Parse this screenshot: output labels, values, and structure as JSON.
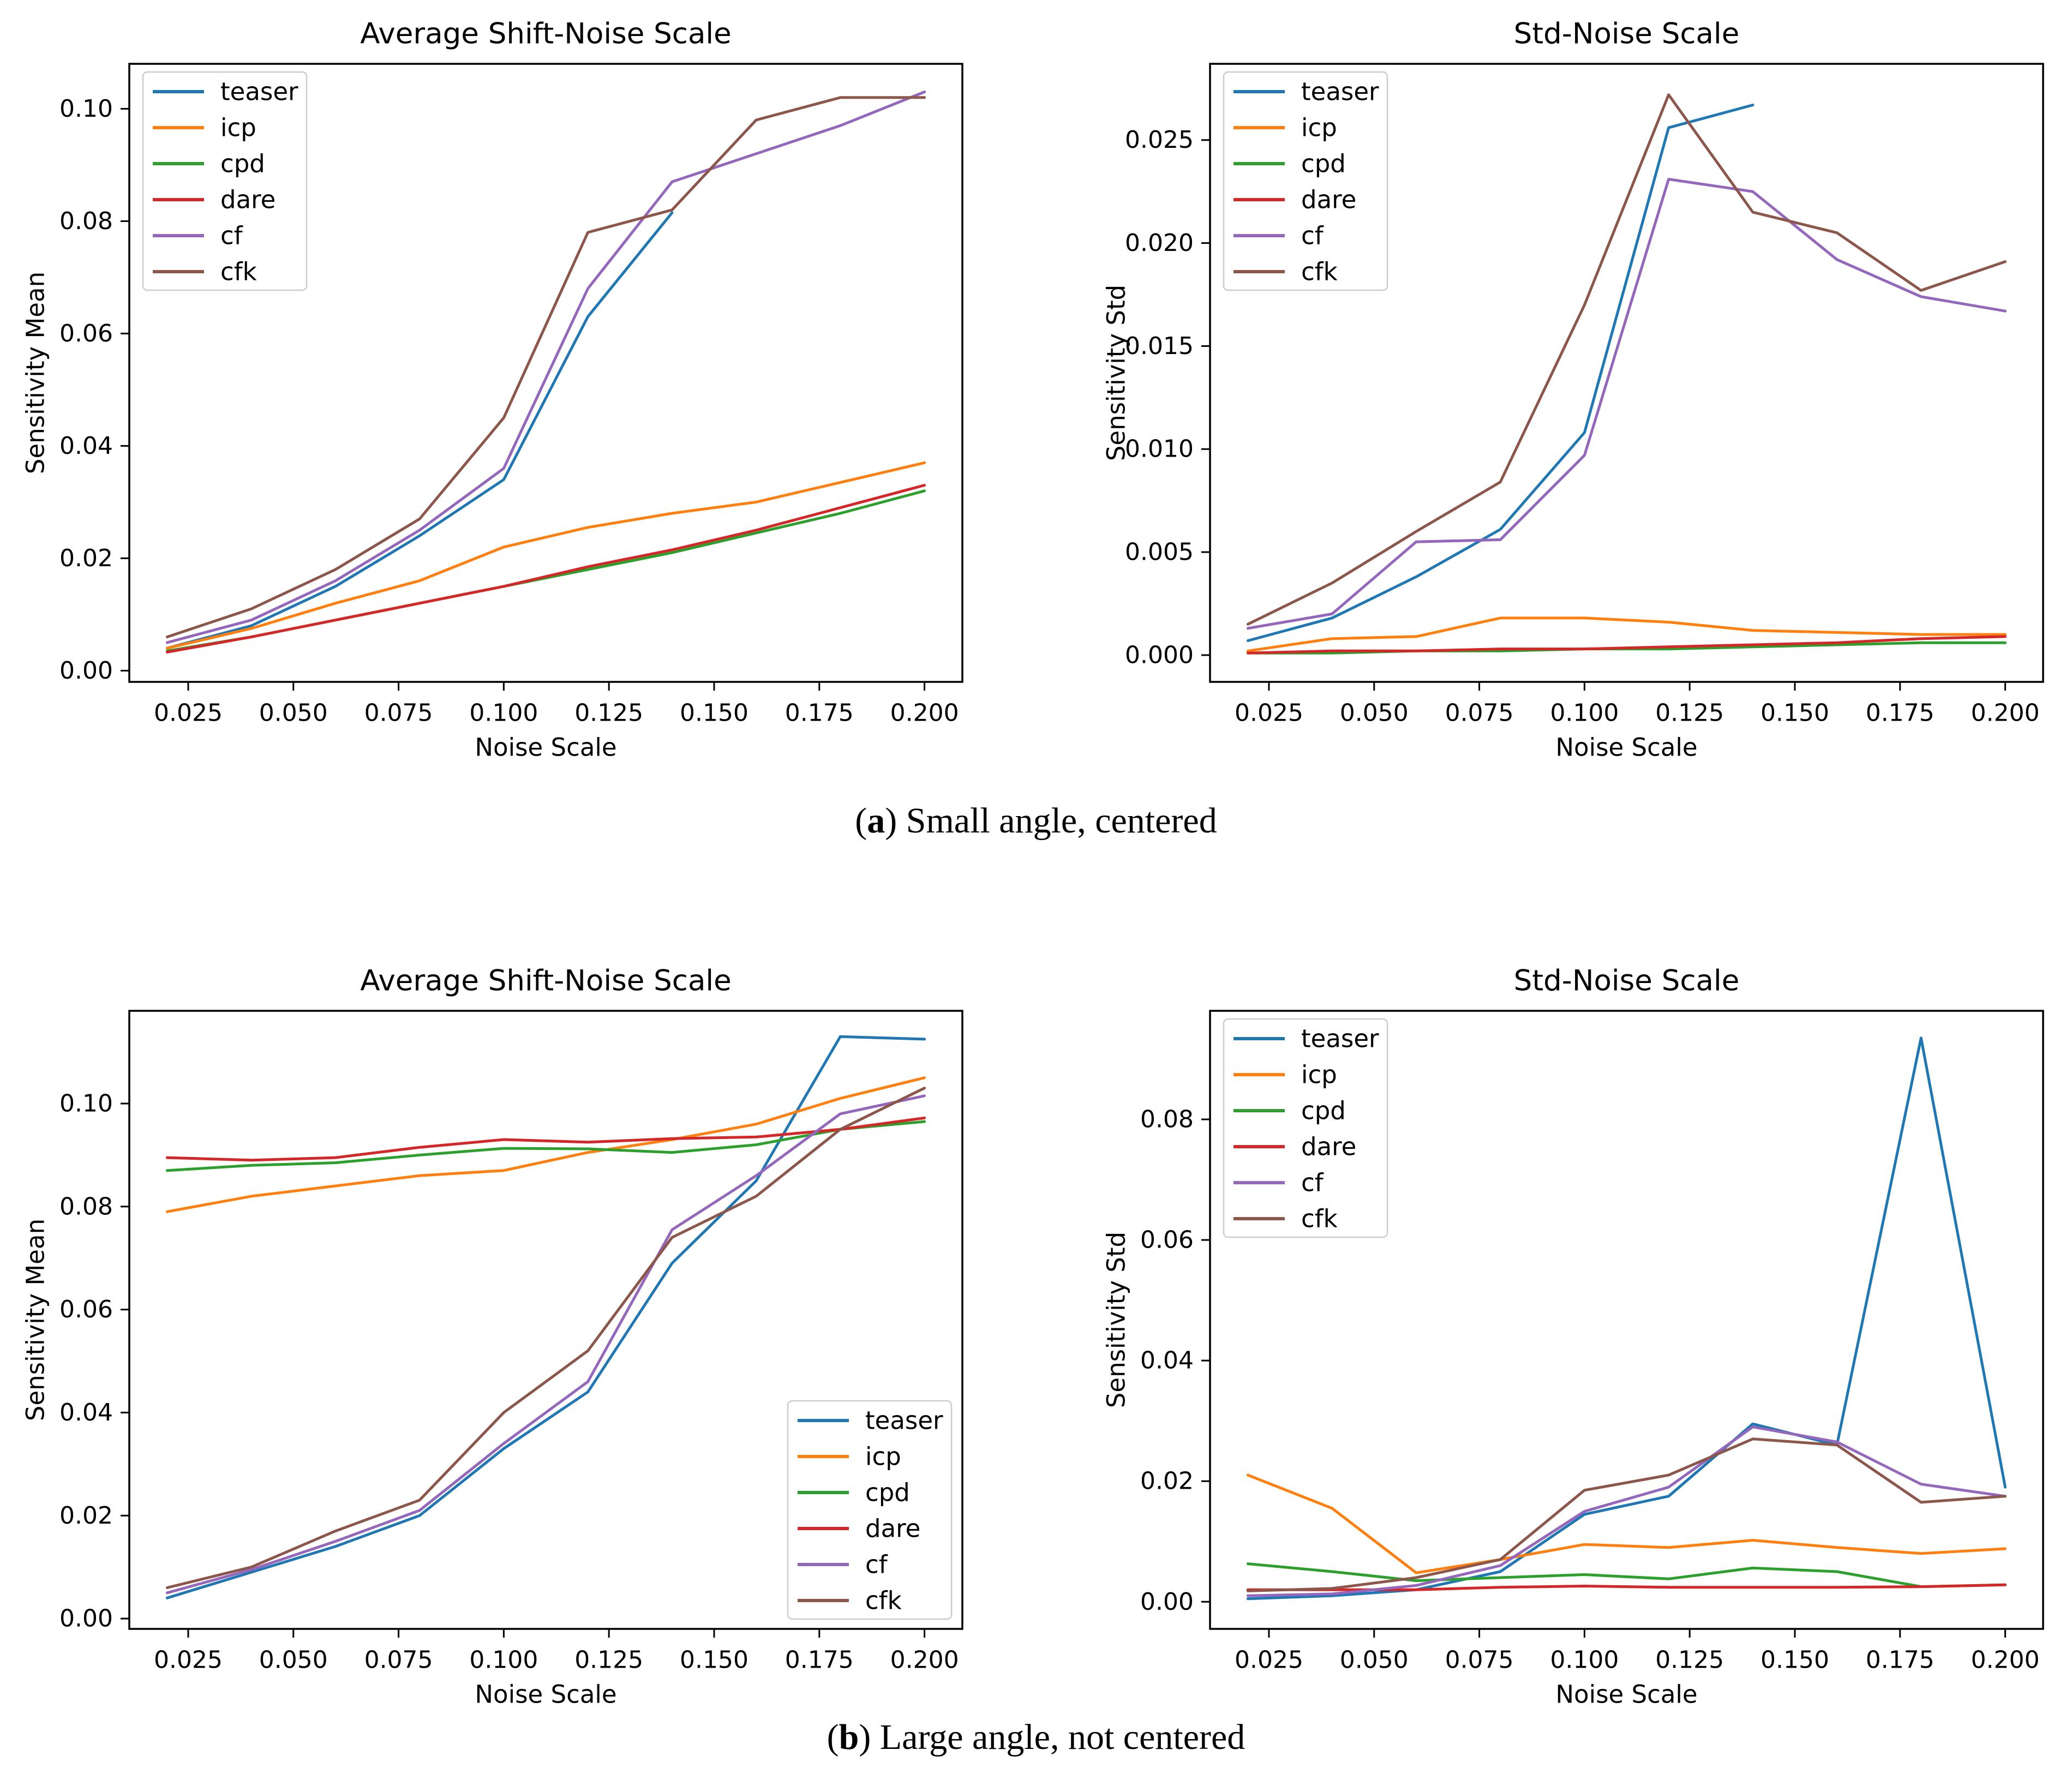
{
  "figure": {
    "captions": [
      {
        "marker": "a",
        "text": "Small angle, centered"
      },
      {
        "marker": "b",
        "text": "Large angle, not centered"
      }
    ]
  },
  "colors": {
    "teaser": "#1f77b4",
    "icp": "#ff7f0e",
    "cpd": "#2ca02c",
    "dare": "#d62728",
    "cf": "#9467bd",
    "cfk": "#8c564b",
    "text": "#000000",
    "spine": "#000000",
    "legend_edge": "#cccccc"
  },
  "chart_data": [
    {
      "type": "line",
      "title": "Average Shift-Noise Scale",
      "xlabel": "Noise Scale",
      "ylabel": "Sensitivity Mean",
      "xlim": [
        0.011,
        0.209
      ],
      "ylim": [
        -0.002,
        0.108
      ],
      "xticks": [
        0.025,
        0.05,
        0.075,
        0.1,
        0.125,
        0.15,
        0.175,
        0.2
      ],
      "xtick_labels": [
        "0.025",
        "0.050",
        "0.075",
        "0.100",
        "0.125",
        "0.150",
        "0.175",
        "0.200"
      ],
      "yticks": [
        0.0,
        0.02,
        0.04,
        0.06,
        0.08,
        0.1
      ],
      "ytick_labels": [
        "0.00",
        "0.02",
        "0.04",
        "0.06",
        "0.08",
        "0.10"
      ],
      "legend_loc": "upper-left",
      "grid": false,
      "x": [
        0.02,
        0.04,
        0.06,
        0.08,
        0.1,
        0.12,
        0.14,
        0.16,
        0.18,
        0.2
      ],
      "series": [
        {
          "name": "teaser",
          "values": [
            0.004,
            0.008,
            0.015,
            0.024,
            0.034,
            0.063,
            0.0815,
            null,
            null,
            null
          ]
        },
        {
          "name": "icp",
          "values": [
            0.004,
            0.0075,
            0.012,
            0.016,
            0.022,
            0.0255,
            0.028,
            0.03,
            0.0335,
            0.037
          ]
        },
        {
          "name": "cpd",
          "values": [
            0.0035,
            0.006,
            0.009,
            0.012,
            0.015,
            0.018,
            0.021,
            0.0245,
            0.028,
            0.032
          ]
        },
        {
          "name": "dare",
          "values": [
            0.0033,
            0.006,
            0.009,
            0.012,
            0.015,
            0.0185,
            0.0215,
            0.025,
            0.029,
            0.033
          ]
        },
        {
          "name": "cf",
          "values": [
            0.005,
            0.009,
            0.016,
            0.025,
            0.036,
            0.068,
            0.087,
            0.092,
            0.097,
            0.103
          ]
        },
        {
          "name": "cfk",
          "values": [
            0.006,
            0.011,
            0.018,
            0.027,
            0.045,
            0.078,
            0.082,
            0.098,
            0.102,
            0.102
          ]
        }
      ]
    },
    {
      "type": "line",
      "title": "Std-Noise Scale",
      "xlabel": "Noise Scale",
      "ylabel": "Sensitivity Std",
      "xlim": [
        0.011,
        0.209
      ],
      "ylim": [
        -0.0013,
        0.0287
      ],
      "xticks": [
        0.025,
        0.05,
        0.075,
        0.1,
        0.125,
        0.15,
        0.175,
        0.2
      ],
      "xtick_labels": [
        "0.025",
        "0.050",
        "0.075",
        "0.100",
        "0.125",
        "0.150",
        "0.175",
        "0.200"
      ],
      "yticks": [
        0.0,
        0.005,
        0.01,
        0.015,
        0.02,
        0.025
      ],
      "ytick_labels": [
        "0.000",
        "0.005",
        "0.010",
        "0.015",
        "0.020",
        "0.025"
      ],
      "legend_loc": "upper-left",
      "grid": false,
      "x": [
        0.02,
        0.04,
        0.06,
        0.08,
        0.1,
        0.12,
        0.14,
        0.16,
        0.18,
        0.2
      ],
      "series": [
        {
          "name": "teaser",
          "values": [
            0.0007,
            0.0018,
            0.0038,
            0.0061,
            0.0108,
            0.0256,
            0.0267,
            null,
            null,
            null
          ]
        },
        {
          "name": "icp",
          "values": [
            0.0002,
            0.0008,
            0.0009,
            0.0018,
            0.0018,
            0.0016,
            0.0012,
            0.0011,
            0.001,
            0.001
          ]
        },
        {
          "name": "cpd",
          "values": [
            0.0001,
            0.0001,
            0.0002,
            0.0002,
            0.0003,
            0.0003,
            0.0004,
            0.0005,
            0.0006,
            0.0006
          ]
        },
        {
          "name": "dare",
          "values": [
            0.0001,
            0.0002,
            0.0002,
            0.0003,
            0.0003,
            0.0004,
            0.0005,
            0.0006,
            0.0008,
            0.0009
          ]
        },
        {
          "name": "cf",
          "values": [
            0.0013,
            0.002,
            0.0055,
            0.0056,
            0.0097,
            0.0231,
            0.0225,
            0.0192,
            0.0174,
            0.0167
          ]
        },
        {
          "name": "cfk",
          "values": [
            0.0015,
            0.0035,
            0.006,
            0.0084,
            0.017,
            0.0272,
            0.0215,
            0.0205,
            0.0177,
            0.0191
          ]
        }
      ]
    },
    {
      "type": "line",
      "title": "Average Shift-Noise Scale",
      "xlabel": "Noise Scale",
      "ylabel": "Sensitivity Mean",
      "xlim": [
        0.011,
        0.209
      ],
      "ylim": [
        -0.002,
        0.118
      ],
      "xticks": [
        0.025,
        0.05,
        0.075,
        0.1,
        0.125,
        0.15,
        0.175,
        0.2
      ],
      "xtick_labels": [
        "0.025",
        "0.050",
        "0.075",
        "0.100",
        "0.125",
        "0.150",
        "0.175",
        "0.200"
      ],
      "yticks": [
        0.0,
        0.02,
        0.04,
        0.06,
        0.08,
        0.1
      ],
      "ytick_labels": [
        "0.00",
        "0.02",
        "0.04",
        "0.06",
        "0.08",
        "0.10"
      ],
      "legend_loc": "lower-right",
      "grid": false,
      "x": [
        0.02,
        0.04,
        0.06,
        0.08,
        0.1,
        0.12,
        0.14,
        0.16,
        0.18,
        0.2
      ],
      "series": [
        {
          "name": "teaser",
          "values": [
            0.004,
            0.009,
            0.014,
            0.02,
            0.033,
            0.044,
            0.069,
            0.085,
            0.113,
            0.1125
          ]
        },
        {
          "name": "icp",
          "values": [
            0.079,
            0.082,
            0.084,
            0.086,
            0.087,
            0.0905,
            0.093,
            0.096,
            0.101,
            0.105
          ]
        },
        {
          "name": "cpd",
          "values": [
            0.087,
            0.088,
            0.0885,
            0.09,
            0.0913,
            0.0912,
            0.0905,
            0.092,
            0.095,
            0.0965
          ]
        },
        {
          "name": "dare",
          "values": [
            0.0895,
            0.089,
            0.0895,
            0.0915,
            0.093,
            0.0925,
            0.0932,
            0.0935,
            0.095,
            0.0972
          ]
        },
        {
          "name": "cf",
          "values": [
            0.005,
            0.0095,
            0.015,
            0.021,
            0.034,
            0.046,
            0.0755,
            0.086,
            0.098,
            0.1015
          ]
        },
        {
          "name": "cfk",
          "values": [
            0.006,
            0.01,
            0.017,
            0.023,
            0.04,
            0.052,
            0.074,
            0.082,
            0.095,
            0.103
          ]
        }
      ]
    },
    {
      "type": "line",
      "title": "Std-Noise Scale",
      "xlabel": "Noise Scale",
      "ylabel": "Sensitivity Std",
      "xlim": [
        0.011,
        0.209
      ],
      "ylim": [
        -0.0045,
        0.098
      ],
      "xticks": [
        0.025,
        0.05,
        0.075,
        0.1,
        0.125,
        0.15,
        0.175,
        0.2
      ],
      "xtick_labels": [
        "0.025",
        "0.050",
        "0.075",
        "0.100",
        "0.125",
        "0.150",
        "0.175",
        "0.200"
      ],
      "yticks": [
        0.0,
        0.02,
        0.04,
        0.06,
        0.08
      ],
      "ytick_labels": [
        "0.00",
        "0.02",
        "0.04",
        "0.06",
        "0.08"
      ],
      "legend_loc": "upper-left",
      "grid": false,
      "x": [
        0.02,
        0.04,
        0.06,
        0.08,
        0.1,
        0.12,
        0.14,
        0.16,
        0.18,
        0.2
      ],
      "series": [
        {
          "name": "teaser",
          "values": [
            0.0005,
            0.001,
            0.002,
            0.005,
            0.0145,
            0.0175,
            0.0295,
            0.026,
            0.0935,
            0.019
          ]
        },
        {
          "name": "icp",
          "values": [
            0.021,
            0.0155,
            0.0048,
            0.007,
            0.0095,
            0.009,
            0.0102,
            0.009,
            0.008,
            0.0088
          ]
        },
        {
          "name": "cpd",
          "values": [
            0.0063,
            0.005,
            0.0035,
            0.004,
            0.0045,
            0.0038,
            0.0056,
            0.005,
            0.0025,
            0.0028
          ]
        },
        {
          "name": "dare",
          "values": [
            0.002,
            0.002,
            0.002,
            0.0024,
            0.0026,
            0.0024,
            0.0024,
            0.0024,
            0.0025,
            0.0028
          ]
        },
        {
          "name": "cf",
          "values": [
            0.001,
            0.0013,
            0.0027,
            0.006,
            0.015,
            0.019,
            0.029,
            0.0265,
            0.0195,
            0.0175
          ]
        },
        {
          "name": "cfk",
          "values": [
            0.0018,
            0.0022,
            0.004,
            0.007,
            0.0185,
            0.021,
            0.027,
            0.026,
            0.0165,
            0.0175
          ]
        }
      ]
    }
  ]
}
